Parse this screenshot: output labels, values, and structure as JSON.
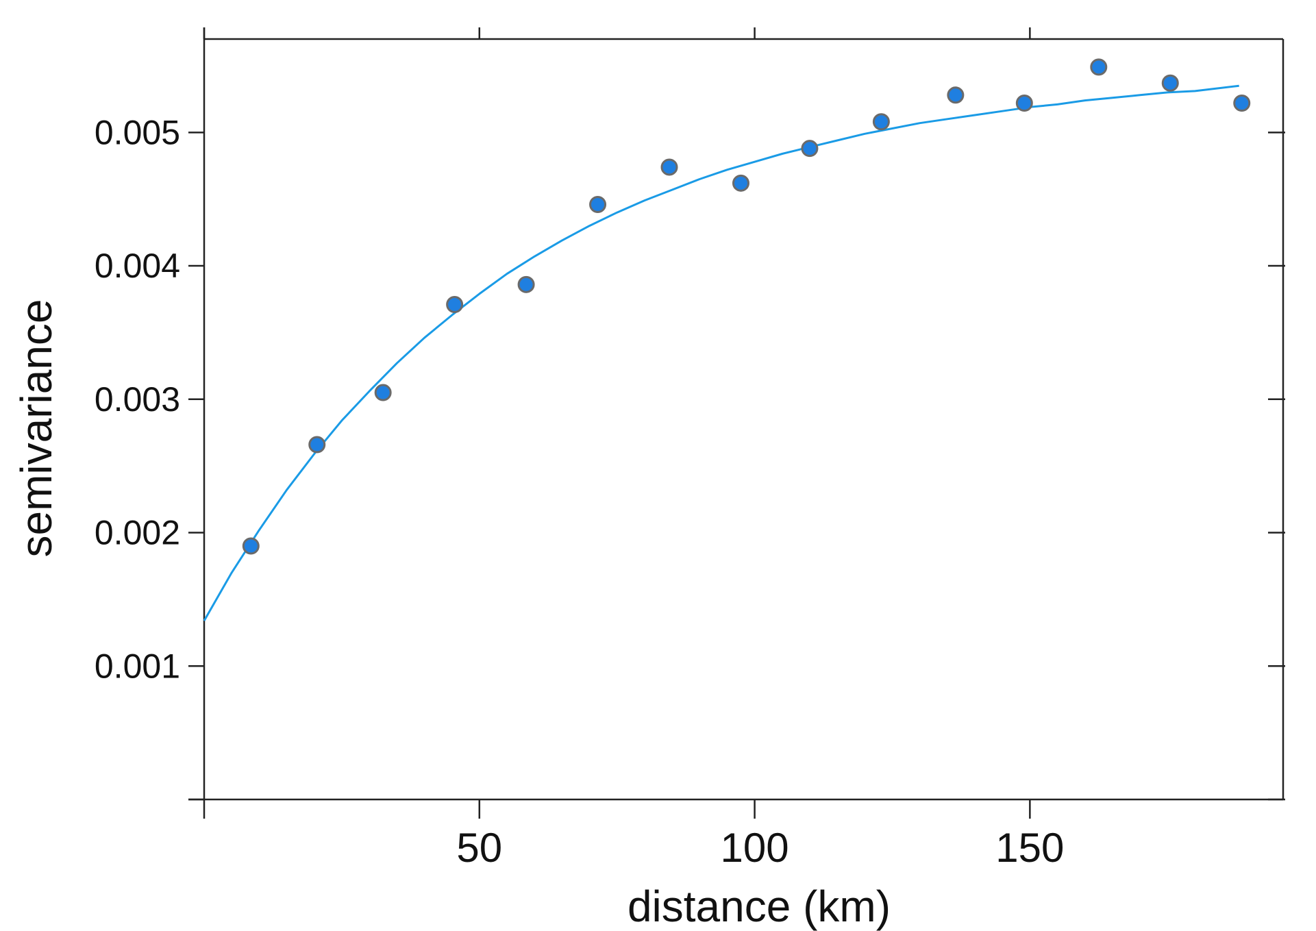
{
  "chart_data": {
    "type": "scatter",
    "xlabel": "distance (km)",
    "ylabel": "semivariance",
    "xlim": [
      0,
      196
    ],
    "ylim": [
      0,
      0.0057
    ],
    "x_ticks": [
      {
        "value": 0,
        "label": ""
      },
      {
        "value": 50,
        "label": "50"
      },
      {
        "value": 100,
        "label": "100"
      },
      {
        "value": 150,
        "label": "150"
      }
    ],
    "y_ticks": [
      {
        "value": 0.0,
        "label": ""
      },
      {
        "value": 0.001,
        "label": "0.001"
      },
      {
        "value": 0.002,
        "label": "0.002"
      },
      {
        "value": 0.003,
        "label": "0.003"
      },
      {
        "value": 0.004,
        "label": "0.004"
      },
      {
        "value": 0.005,
        "label": "0.005"
      }
    ],
    "grid": false,
    "legend": "none",
    "series": [
      {
        "kind": "points",
        "color": "#1f7fe0",
        "x": [
          8.5,
          20.5,
          32.5,
          45.5,
          58.5,
          71.5,
          84.5,
          97.5,
          110.0,
          123.0,
          136.5,
          149.0,
          162.5,
          175.5,
          188.5
        ],
        "y": [
          0.0019,
          0.00266,
          0.00305,
          0.00371,
          0.00386,
          0.00446,
          0.00474,
          0.00462,
          0.00488,
          0.00508,
          0.00528,
          0.00522,
          0.00549,
          0.00537,
          0.00522
        ]
      },
      {
        "kind": "fitted-curve",
        "color": "#1a9be6",
        "x": [
          0,
          5,
          10,
          15,
          20,
          25,
          30,
          35,
          40,
          45,
          50,
          55,
          60,
          65,
          70,
          75,
          80,
          85,
          90,
          95,
          100,
          105,
          110,
          115,
          120,
          125,
          130,
          135,
          140,
          145,
          150,
          155,
          160,
          165,
          170,
          175,
          180,
          188
        ],
        "y": [
          0.00134,
          0.0017,
          0.00202,
          0.00232,
          0.00259,
          0.00284,
          0.00306,
          0.00327,
          0.00346,
          0.00363,
          0.00379,
          0.00394,
          0.00407,
          0.00419,
          0.0043,
          0.0044,
          0.00449,
          0.00457,
          0.00465,
          0.00472,
          0.00478,
          0.00484,
          0.00489,
          0.00494,
          0.00499,
          0.00503,
          0.00507,
          0.0051,
          0.00513,
          0.00516,
          0.00519,
          0.00521,
          0.00524,
          0.00526,
          0.00528,
          0.0053,
          0.00531,
          0.00535
        ]
      }
    ]
  }
}
